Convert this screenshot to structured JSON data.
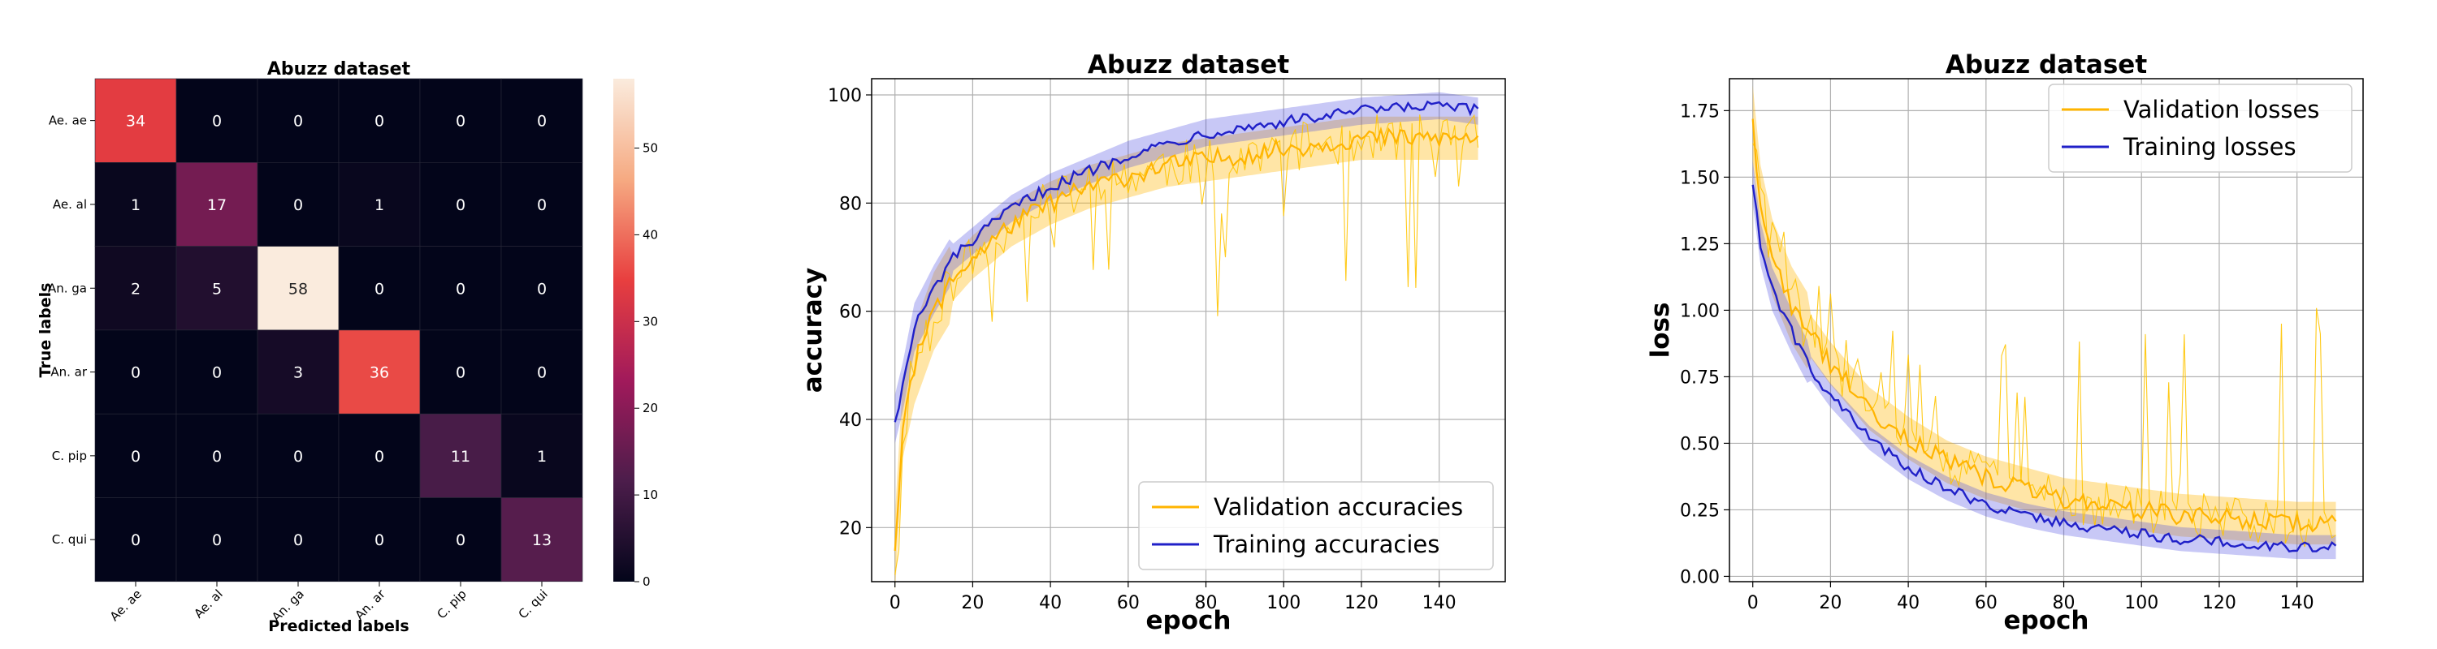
{
  "chart_data": [
    {
      "type": "heatmap",
      "title": "Abuzz dataset",
      "xlabel": "Predicted labels",
      "ylabel": "True labels",
      "x_categories": [
        "Ae. ae",
        "Ae. al",
        "An. ga",
        "An. ar",
        "C. pip",
        "C. qui"
      ],
      "y_categories": [
        "Ae. ae",
        "Ae. al",
        "An. ga",
        "An. ar",
        "C. pip",
        "C. qui"
      ],
      "matrix": [
        [
          34,
          0,
          0,
          0,
          0,
          0
        ],
        [
          1,
          17,
          0,
          1,
          0,
          0
        ],
        [
          2,
          5,
          58,
          0,
          0,
          0
        ],
        [
          0,
          0,
          3,
          36,
          0,
          0
        ],
        [
          0,
          0,
          0,
          0,
          11,
          1
        ],
        [
          0,
          0,
          0,
          0,
          0,
          13
        ]
      ],
      "colorbar": {
        "range": [
          0,
          58
        ],
        "ticks": [
          0,
          10,
          20,
          30,
          40,
          50
        ],
        "colormap": "rocket"
      }
    },
    {
      "type": "line",
      "title": "Abuzz dataset",
      "xlabel": "epoch",
      "ylabel": "accuracy",
      "xlim": [
        -6,
        157
      ],
      "ylim": [
        10,
        103
      ],
      "xticks": [
        0,
        20,
        40,
        60,
        80,
        100,
        120,
        140
      ],
      "yticks": [
        20,
        40,
        60,
        80,
        100
      ],
      "grid": true,
      "legend": "lower-right",
      "series": [
        {
          "name": "Validation accuracies",
          "color": "#ffb400",
          "x": [
            0,
            2,
            5,
            10,
            15,
            20,
            30,
            40,
            50,
            60,
            70,
            80,
            90,
            100,
            110,
            120,
            130,
            140,
            150
          ],
          "values": [
            15,
            40,
            50,
            60,
            66,
            70,
            76,
            80,
            83,
            85,
            87,
            88,
            89,
            90,
            91,
            92,
            92,
            92,
            92
          ]
        },
        {
          "name": "Training accuracies",
          "color": "#2020c8",
          "x": [
            0,
            2,
            5,
            10,
            15,
            20,
            30,
            40,
            50,
            60,
            70,
            80,
            90,
            100,
            110,
            120,
            130,
            140,
            150
          ],
          "values": [
            40,
            46,
            57,
            64,
            70,
            73,
            79,
            83,
            86,
            89,
            91,
            93,
            94,
            95,
            96,
            97,
            97.5,
            98,
            97
          ]
        }
      ]
    },
    {
      "type": "line",
      "title": "Abuzz dataset",
      "xlabel": "epoch",
      "ylabel": "loss",
      "xlim": [
        -6,
        157
      ],
      "ylim": [
        -0.02,
        1.87
      ],
      "xticks": [
        0,
        20,
        40,
        60,
        80,
        100,
        120,
        140
      ],
      "yticks": [
        0.0,
        0.25,
        0.5,
        0.75,
        1.0,
        1.25,
        1.5,
        1.75
      ],
      "ytick_labels": [
        "0.00",
        "0.25",
        "0.50",
        "0.75",
        "1.00",
        "1.25",
        "1.50",
        "1.75"
      ],
      "grid": true,
      "legend": "upper-right",
      "series": [
        {
          "name": "Validation losses",
          "color": "#ffb400",
          "x": [
            0,
            2,
            5,
            10,
            15,
            20,
            30,
            40,
            50,
            60,
            70,
            80,
            90,
            100,
            110,
            120,
            130,
            140,
            150
          ],
          "values": [
            1.7,
            1.4,
            1.2,
            1.02,
            0.9,
            0.8,
            0.63,
            0.52,
            0.43,
            0.37,
            0.33,
            0.29,
            0.27,
            0.25,
            0.23,
            0.22,
            0.21,
            0.2,
            0.2
          ]
        },
        {
          "name": "Training losses",
          "color": "#2020c8",
          "x": [
            0,
            2,
            5,
            10,
            15,
            20,
            30,
            40,
            50,
            60,
            70,
            80,
            90,
            100,
            110,
            120,
            130,
            140,
            150
          ],
          "values": [
            1.48,
            1.25,
            1.08,
            0.92,
            0.78,
            0.68,
            0.52,
            0.41,
            0.33,
            0.27,
            0.23,
            0.2,
            0.18,
            0.16,
            0.14,
            0.13,
            0.12,
            0.11,
            0.11
          ]
        }
      ]
    }
  ]
}
